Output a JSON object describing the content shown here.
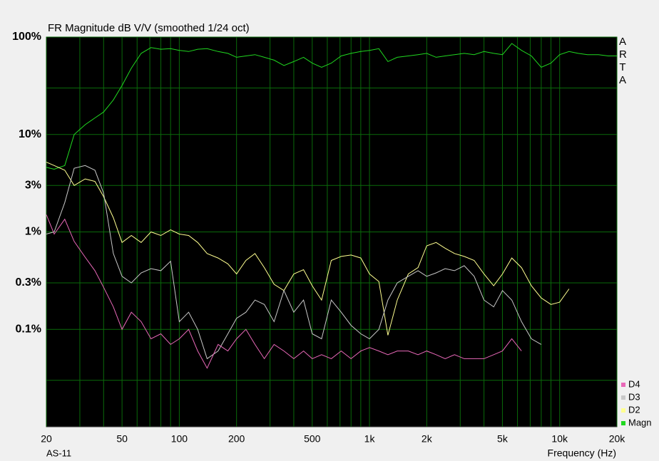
{
  "chart_data": {
    "type": "line",
    "title": "FR Magnitude dB V/V (smoothed 1/24 oct)",
    "side_label": "ARTA",
    "footer_left": "AS-11",
    "x_label": "Frequency (Hz)",
    "x_log": true,
    "y_log": true,
    "grid": true,
    "xlim": [
      20,
      20000
    ],
    "ylim": [
      0.01,
      100
    ],
    "xticks": [
      20,
      50,
      100,
      200,
      500,
      {
        "value": 1000,
        "label": "1k"
      },
      {
        "value": 2000,
        "label": "2k"
      },
      {
        "value": 5000,
        "label": "5k"
      },
      {
        "value": 10000,
        "label": "10k"
      },
      {
        "value": 20000,
        "label": "20k"
      }
    ],
    "minor_xticks": [
      30,
      40,
      60,
      70,
      80,
      90,
      300,
      400,
      600,
      700,
      800,
      900,
      3000,
      4000,
      6000,
      7000,
      8000,
      9000
    ],
    "yticks": [
      {
        "value": 100,
        "label": "100%"
      },
      {
        "value": 10,
        "label": "10%"
      },
      {
        "value": 3,
        "label": "3%"
      },
      {
        "value": 1,
        "label": "1%"
      },
      {
        "value": 0.3,
        "label": "0.3%"
      },
      {
        "value": 0.1,
        "label": "0.1%"
      }
    ],
    "minor_yticks": [
      30,
      0.03
    ],
    "legend": "bottom-right",
    "x": [
      20,
      22,
      25,
      28,
      32,
      36,
      40,
      45,
      50,
      56,
      63,
      71,
      80,
      90,
      100,
      112,
      125,
      140,
      160,
      180,
      200,
      224,
      250,
      280,
      315,
      355,
      400,
      450,
      500,
      560,
      630,
      710,
      800,
      900,
      1000,
      1120,
      1250,
      1400,
      1600,
      1800,
      2000,
      2240,
      2500,
      2800,
      3150,
      3550,
      4000,
      4500,
      5000,
      5600,
      6300,
      7100,
      8000,
      9000,
      10000,
      11200,
      12500,
      14000,
      16000,
      18000,
      20000
    ],
    "series": [
      {
        "name": "D4",
        "color": "#e868b8",
        "values": [
          1.5,
          0.95,
          1.35,
          0.8,
          0.55,
          0.4,
          0.27,
          0.17,
          0.1,
          0.15,
          0.12,
          0.08,
          0.09,
          0.07,
          0.08,
          0.1,
          0.06,
          0.04,
          0.07,
          0.06,
          0.08,
          0.1,
          0.07,
          0.05,
          0.07,
          0.06,
          0.05,
          0.06,
          0.05,
          0.055,
          0.05,
          0.06,
          0.05,
          0.06,
          0.065,
          0.06,
          0.055,
          0.06,
          0.06,
          0.055,
          0.06,
          0.055,
          0.05,
          0.055,
          0.05,
          0.05,
          0.05,
          0.055,
          0.06,
          0.08,
          0.06,
          null,
          null,
          null,
          null,
          null,
          null,
          null,
          null,
          null,
          null
        ]
      },
      {
        "name": "D3",
        "color": "#c8c8c8",
        "values": [
          0.95,
          1.0,
          2.0,
          4.5,
          4.8,
          4.3,
          2.5,
          0.6,
          0.35,
          0.3,
          0.38,
          0.42,
          0.4,
          0.5,
          0.12,
          0.15,
          0.1,
          0.05,
          0.06,
          0.09,
          0.13,
          0.15,
          0.2,
          0.18,
          0.12,
          0.25,
          0.15,
          0.2,
          0.09,
          0.08,
          0.2,
          0.15,
          0.11,
          0.09,
          0.08,
          0.1,
          0.2,
          0.3,
          0.35,
          0.4,
          0.35,
          0.38,
          0.42,
          0.4,
          0.45,
          0.35,
          0.2,
          0.17,
          0.25,
          0.2,
          0.12,
          0.08,
          0.07,
          null,
          null,
          null,
          null,
          null,
          null,
          null,
          null
        ]
      },
      {
        "name": "D2",
        "color": "#ffff90",
        "values": [
          5.2,
          4.8,
          4.3,
          3.0,
          3.5,
          3.3,
          2.3,
          1.4,
          0.78,
          0.92,
          0.78,
          1.0,
          0.92,
          1.05,
          0.95,
          0.92,
          0.78,
          0.6,
          0.54,
          0.47,
          0.37,
          0.51,
          0.6,
          0.43,
          0.29,
          0.25,
          0.37,
          0.41,
          0.28,
          0.2,
          0.51,
          0.56,
          0.58,
          0.54,
          0.37,
          0.31,
          0.087,
          0.2,
          0.37,
          0.43,
          0.72,
          0.78,
          0.68,
          0.6,
          0.56,
          0.51,
          0.37,
          0.28,
          0.37,
          0.54,
          0.43,
          0.28,
          0.21,
          0.18,
          0.19,
          0.26,
          null,
          null,
          null,
          null,
          null
        ]
      },
      {
        "name": "Magn",
        "color": "#20d820",
        "values": [
          4.6,
          4.4,
          4.8,
          10,
          12.6,
          14.8,
          17,
          22.6,
          31.8,
          48,
          68,
          78,
          75,
          76,
          73,
          71,
          75,
          76,
          71,
          68,
          62,
          64,
          66,
          62,
          58,
          51,
          56,
          62,
          54,
          49,
          54,
          64,
          68,
          71,
          73,
          76,
          56,
          62,
          64,
          66,
          68,
          62,
          64,
          66,
          68,
          66,
          71,
          68,
          66,
          86,
          73,
          64,
          49,
          54,
          66,
          71,
          68,
          66,
          66,
          64,
          64
        ]
      }
    ]
  }
}
